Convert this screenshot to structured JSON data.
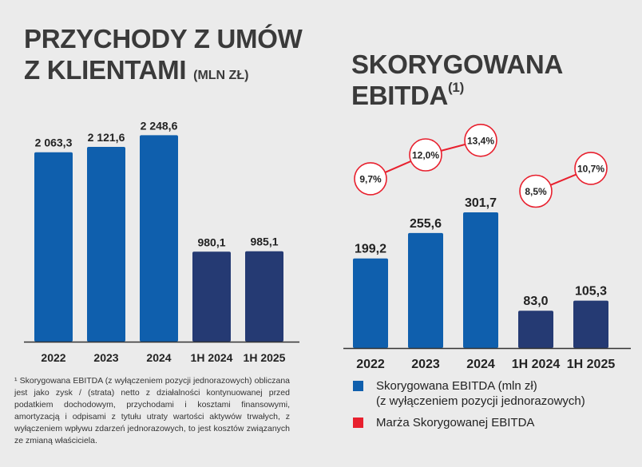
{
  "colors": {
    "blue": "#0f5fad",
    "navy": "#253a73",
    "red": "#e8202e",
    "axis": "#333333",
    "text": "#222222"
  },
  "left": {
    "title_line1": "PRZYCHODY Z UMÓW",
    "title_line2": "Z KLIENTAMI",
    "title_unit": "(MLN ZŁ)"
  },
  "right": {
    "title_line1": "SKORYGOWANA",
    "title_line2": "EBITDA",
    "title_sup": "(1)"
  },
  "footnote": "¹ Skorygowana EBITDA (z wyłączeniem pozycji jednorazowych) obliczana jest jako zysk / (strata) netto z działalności kontynuowanej przed podatkiem dochodowym, przychodami i kosztami finansowymi, amortyzacją i odpisami z tytułu utraty wartości aktywów trwałych, z wyłączeniem wpływu zdarzeń jednorazowych, to jest kosztów związanych ze zmianą właściciela.",
  "legend": {
    "ebitda_line1": "Skorygowana EBITDA (mln zł)",
    "ebitda_line2": "(z wyłączeniem pozycji jednorazowych)",
    "margin": "Marża Skorygowanej EBITDA"
  },
  "chart_data": [
    {
      "type": "bar",
      "title": "PRZYCHODY Z UMÓW Z KLIENTAMI (MLN ZŁ)",
      "categories": [
        "2022",
        "2023",
        "2024",
        "1H 2024",
        "1H 2025"
      ],
      "values": [
        2063.3,
        2121.6,
        2248.6,
        980.1,
        985.1
      ],
      "value_labels": [
        "2 063,3",
        "2 121,6",
        "2 248,6",
        "980,1",
        "985,1"
      ],
      "colors": [
        "#0f5fad",
        "#0f5fad",
        "#0f5fad",
        "#253a73",
        "#253a73"
      ],
      "ylim": [
        0,
        2400
      ]
    },
    {
      "type": "bar",
      "title": "SKORYGOWANA EBITDA(1)",
      "categories": [
        "2022",
        "2023",
        "2024",
        "1H 2024",
        "1H 2025"
      ],
      "values": [
        199.2,
        255.6,
        301.7,
        83.0,
        105.3
      ],
      "value_labels": [
        "199,2",
        "255,6",
        "301,7",
        "83,0",
        "105,3"
      ],
      "colors": [
        "#0f5fad",
        "#0f5fad",
        "#0f5fad",
        "#253a73",
        "#253a73"
      ],
      "ylim": [
        0,
        330
      ],
      "margin_series": {
        "name": "Marża Skorygowanej EBITDA",
        "values": [
          9.7,
          12.0,
          13.4,
          8.5,
          10.7
        ],
        "labels": [
          "9,7%",
          "12,0%",
          "13,4%",
          "8,5%",
          "10,7%"
        ],
        "connections": [
          [
            0,
            1
          ],
          [
            1,
            2
          ],
          [
            3,
            4
          ]
        ]
      }
    }
  ]
}
